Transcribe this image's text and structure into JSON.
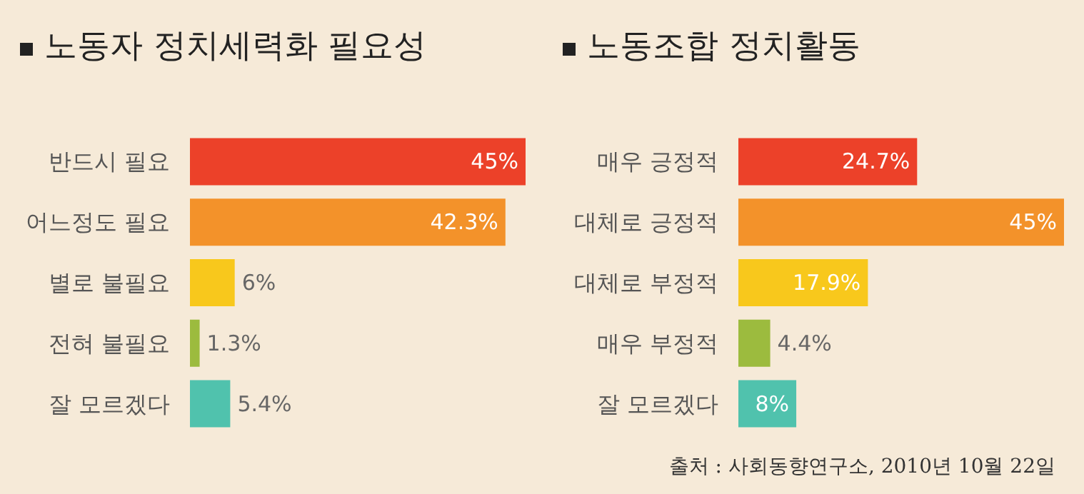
{
  "chart_data": [
    {
      "type": "bar",
      "orientation": "horizontal",
      "title": "노동자 정치세력화 필요성",
      "categories": [
        "반드시 필요",
        "어느정도 필요",
        "별로 불필요",
        "전혀 불필요",
        "잘 모르겠다"
      ],
      "values": [
        45,
        42.3,
        6,
        1.3,
        5.4
      ],
      "value_labels": [
        "45%",
        "42.3%",
        "6%",
        "1.3%",
        "5.4%"
      ],
      "colors": [
        "#ec4129",
        "#f3922a",
        "#f8c81c",
        "#9cbb3e",
        "#50c2ad"
      ]
    },
    {
      "type": "bar",
      "orientation": "horizontal",
      "title": "노동조합 정치활동",
      "categories": [
        "매우 긍정적",
        "대체로 긍정적",
        "대체로 부정적",
        "매우 부정적",
        "잘 모르겠다"
      ],
      "values": [
        24.7,
        45,
        17.9,
        4.4,
        8
      ],
      "value_labels": [
        "24.7%",
        "45%",
        "17.9%",
        "4.4%",
        "8%"
      ],
      "colors": [
        "#ec4129",
        "#f3922a",
        "#f8c81c",
        "#9cbb3e",
        "#50c2ad"
      ],
      "annotations": [
        "출처 : 사회동향연구소, 2010년 10월 22일"
      ]
    }
  ]
}
